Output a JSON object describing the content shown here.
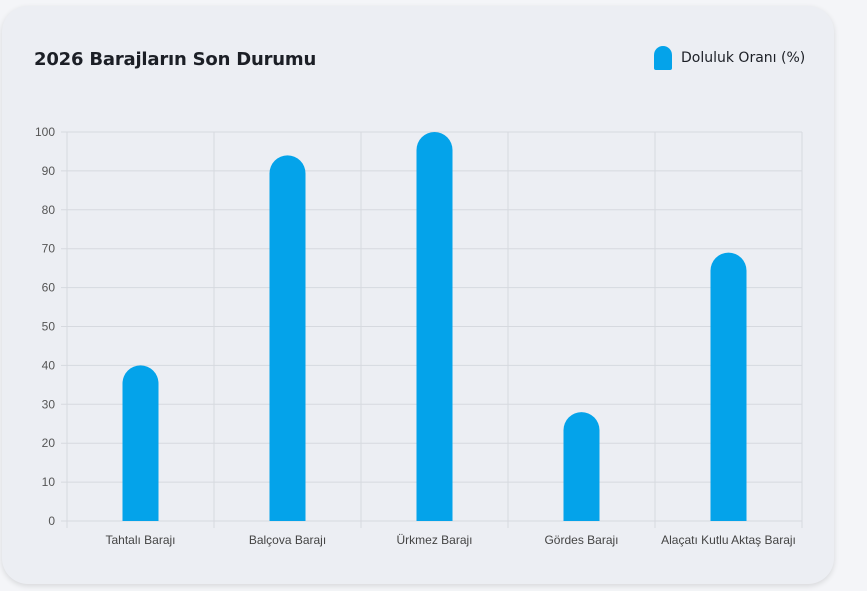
{
  "card": {
    "title": "2026 Barajların Son Durumu",
    "legend_label": "Doluluk Oranı (%)"
  },
  "colors": {
    "bar": "#04a3ea",
    "grid": "#d6d9df",
    "card_bg": "#eceef3"
  },
  "chart_data": {
    "type": "bar",
    "title": "2026 Barajların Son Durumu",
    "categories": [
      "Tahtalı Barajı",
      "Balçova Barajı",
      "Ürkmez Barajı",
      "Gördes Barajı",
      "Alaçatı Kutlu Aktaş Barajı"
    ],
    "series": [
      {
        "name": "Doluluk Oranı (%)",
        "values": [
          40,
          94,
          100,
          28,
          69
        ]
      }
    ],
    "ylim": [
      0,
      100
    ],
    "yticks": [
      0,
      10,
      20,
      30,
      40,
      50,
      60,
      70,
      80,
      90,
      100
    ],
    "grid": true,
    "legend": "top-right"
  }
}
